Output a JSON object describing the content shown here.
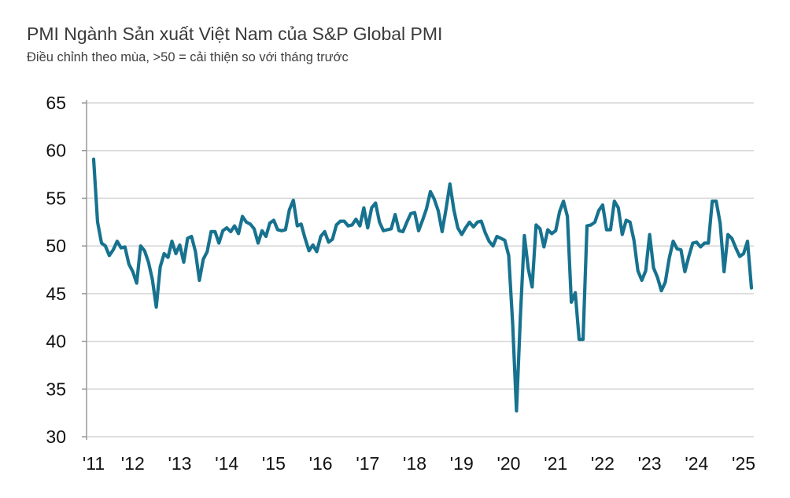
{
  "title": "PMI Ngành Sản xuất Việt Nam của S&P Global PMI",
  "subtitle": "Điều chỉnh theo mùa, >50 = cải thiện so với tháng trước",
  "chart_data": {
    "type": "line",
    "title": "PMI Ngành Sản xuất Việt Nam của S&P Global PMI",
    "subtitle": "Điều chỉnh theo mùa, >50 = cải thiện so với tháng trước",
    "xlabel": "",
    "ylabel": "",
    "ylim": [
      30,
      65
    ],
    "yticks": [
      30,
      35,
      40,
      45,
      50,
      55,
      60,
      65
    ],
    "xtick_labels": [
      "'11",
      "'12",
      "'13",
      "'14",
      "'15",
      "'16",
      "'17",
      "'18",
      "'19",
      "'20",
      "'21",
      "'22",
      "'23",
      "'24",
      "'25"
    ],
    "grid": true,
    "color": "#17728f",
    "x_start": "2011-03",
    "x_end": "2025-04",
    "frequency": "monthly",
    "series": [
      {
        "values": [
          59.1,
          52.5,
          50.3,
          50.0,
          49.0,
          49.6,
          50.5,
          49.8,
          49.9,
          48.1,
          47.3,
          46.1,
          50.0,
          49.5,
          48.3,
          46.5,
          43.6,
          47.8,
          49.2,
          48.8,
          50.5,
          49.2,
          50.1,
          48.3,
          50.8,
          51.0,
          49.4,
          46.4,
          48.6,
          49.4,
          51.5,
          51.5,
          50.3,
          51.6,
          51.9,
          51.5,
          52.1,
          51.3,
          53.1,
          52.5,
          52.3,
          51.8,
          50.3,
          51.6,
          51.0,
          52.4,
          52.7,
          51.7,
          51.6,
          51.7,
          53.8,
          54.8,
          52.1,
          52.3,
          50.8,
          49.5,
          50.1,
          49.4,
          51.0,
          51.5,
          50.4,
          50.7,
          52.2,
          52.6,
          52.6,
          52.1,
          52.2,
          52.8,
          52.1,
          54.0,
          51.9,
          54.0,
          54.5,
          52.5,
          51.6,
          51.7,
          51.8,
          53.3,
          51.6,
          51.5,
          52.5,
          53.4,
          53.5,
          51.6,
          52.7,
          53.9,
          55.7,
          54.9,
          53.7,
          51.5,
          53.9,
          56.5,
          53.8,
          51.9,
          51.2,
          51.9,
          52.5,
          52.0,
          52.5,
          52.6,
          51.4,
          50.5,
          50.0,
          51.0,
          50.8,
          50.6,
          49.0,
          41.9,
          32.7,
          42.7,
          51.1,
          47.6,
          45.7,
          52.2,
          51.8,
          49.9,
          51.7,
          51.3,
          51.6,
          53.6,
          54.7,
          53.1,
          44.1,
          45.1,
          40.2,
          40.2,
          52.1,
          52.2,
          52.5,
          53.7,
          54.3,
          51.7,
          51.7,
          54.7,
          54.0,
          51.2,
          52.7,
          52.5,
          50.6,
          47.4,
          46.4,
          47.4,
          51.2,
          47.7,
          46.7,
          45.3,
          46.2,
          48.7,
          50.5,
          49.7,
          49.6,
          47.3,
          48.9,
          50.3,
          50.4,
          49.9,
          50.3,
          50.3,
          54.7,
          54.7,
          52.4,
          47.3,
          51.2,
          50.8,
          49.8,
          48.9,
          49.2,
          50.5,
          45.6
        ]
      }
    ]
  }
}
